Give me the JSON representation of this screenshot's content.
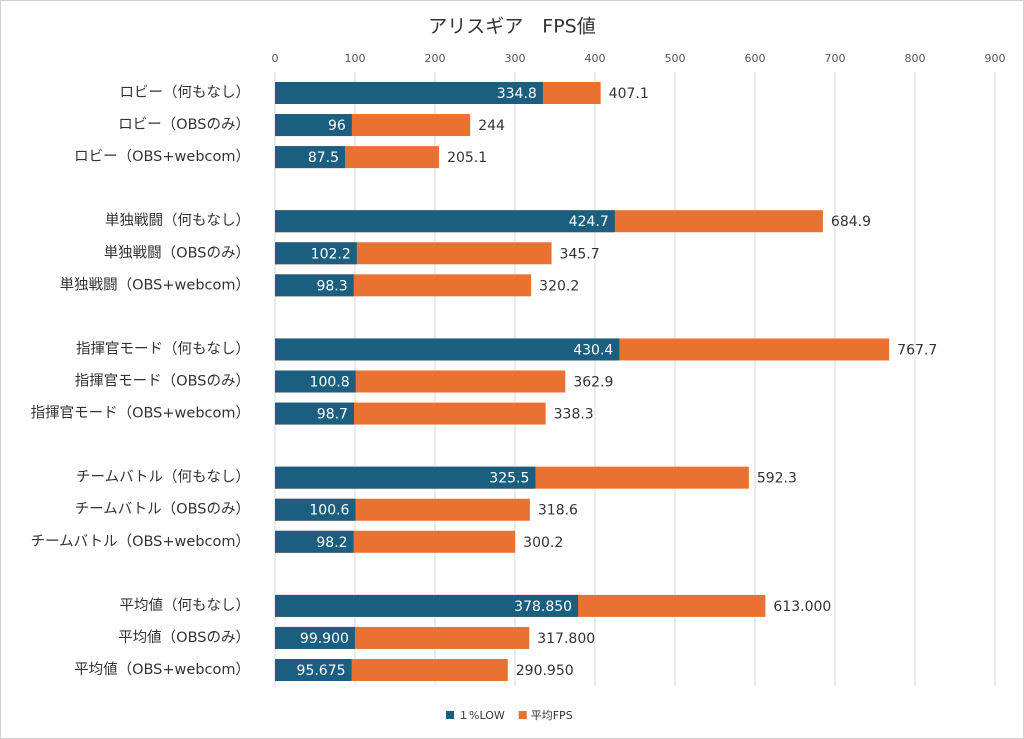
{
  "chart_data": {
    "type": "bar",
    "orientation": "horizontal",
    "overlap": true,
    "title": "アリスギア　FPS値",
    "categories": [
      "ロビー（何もなし）",
      "ロビー（OBSのみ）",
      "ロビー（OBS+webcom）",
      null,
      "単独戦闘（何もなし）",
      "単独戦闘（OBSのみ）",
      "単独戦闘（OBS+webcom）",
      null,
      "指揮官モード（何もなし）",
      "指揮官モード（OBSのみ）",
      "指揮官モード（OBS+webcom）",
      null,
      "チームバトル（何もなし）",
      "チームバトル（OBSのみ）",
      "チームバトル（OBS+webcom）",
      null,
      "平均値（何もなし）",
      "平均値（OBSのみ）",
      "平均値（OBS+webcom）"
    ],
    "series": [
      {
        "name": "平均FPS",
        "color": "#e97132",
        "values": [
          407.1,
          244,
          205.1,
          null,
          684.9,
          345.7,
          320.2,
          null,
          767.7,
          362.9,
          338.3,
          null,
          592.3,
          318.6,
          300.2,
          null,
          613,
          317.8,
          290.95
        ],
        "value_labels": [
          null,
          null,
          null,
          null,
          null,
          null,
          null,
          null,
          null,
          null,
          null,
          null,
          null,
          null,
          null,
          null,
          "613.000",
          "317.800",
          "290.950"
        ]
      },
      {
        "name": "１%LOW",
        "color": "#1a5e80",
        "values": [
          334.8,
          96,
          87.5,
          null,
          424.7,
          102.2,
          98.3,
          null,
          430.4,
          100.8,
          98.7,
          null,
          325.5,
          100.6,
          98.2,
          null,
          378.85,
          99.9,
          95.675
        ],
        "value_labels": [
          null,
          null,
          null,
          null,
          null,
          null,
          null,
          null,
          null,
          null,
          null,
          null,
          null,
          null,
          null,
          null,
          "378.850",
          "99.900",
          null
        ]
      }
    ],
    "legend_order": [
      1,
      0
    ],
    "xlim": [
      0,
      900
    ],
    "xticks": [
      0,
      100,
      200,
      300,
      400,
      500,
      600,
      700,
      800,
      900
    ],
    "grid": true,
    "legend": "bottom"
  }
}
